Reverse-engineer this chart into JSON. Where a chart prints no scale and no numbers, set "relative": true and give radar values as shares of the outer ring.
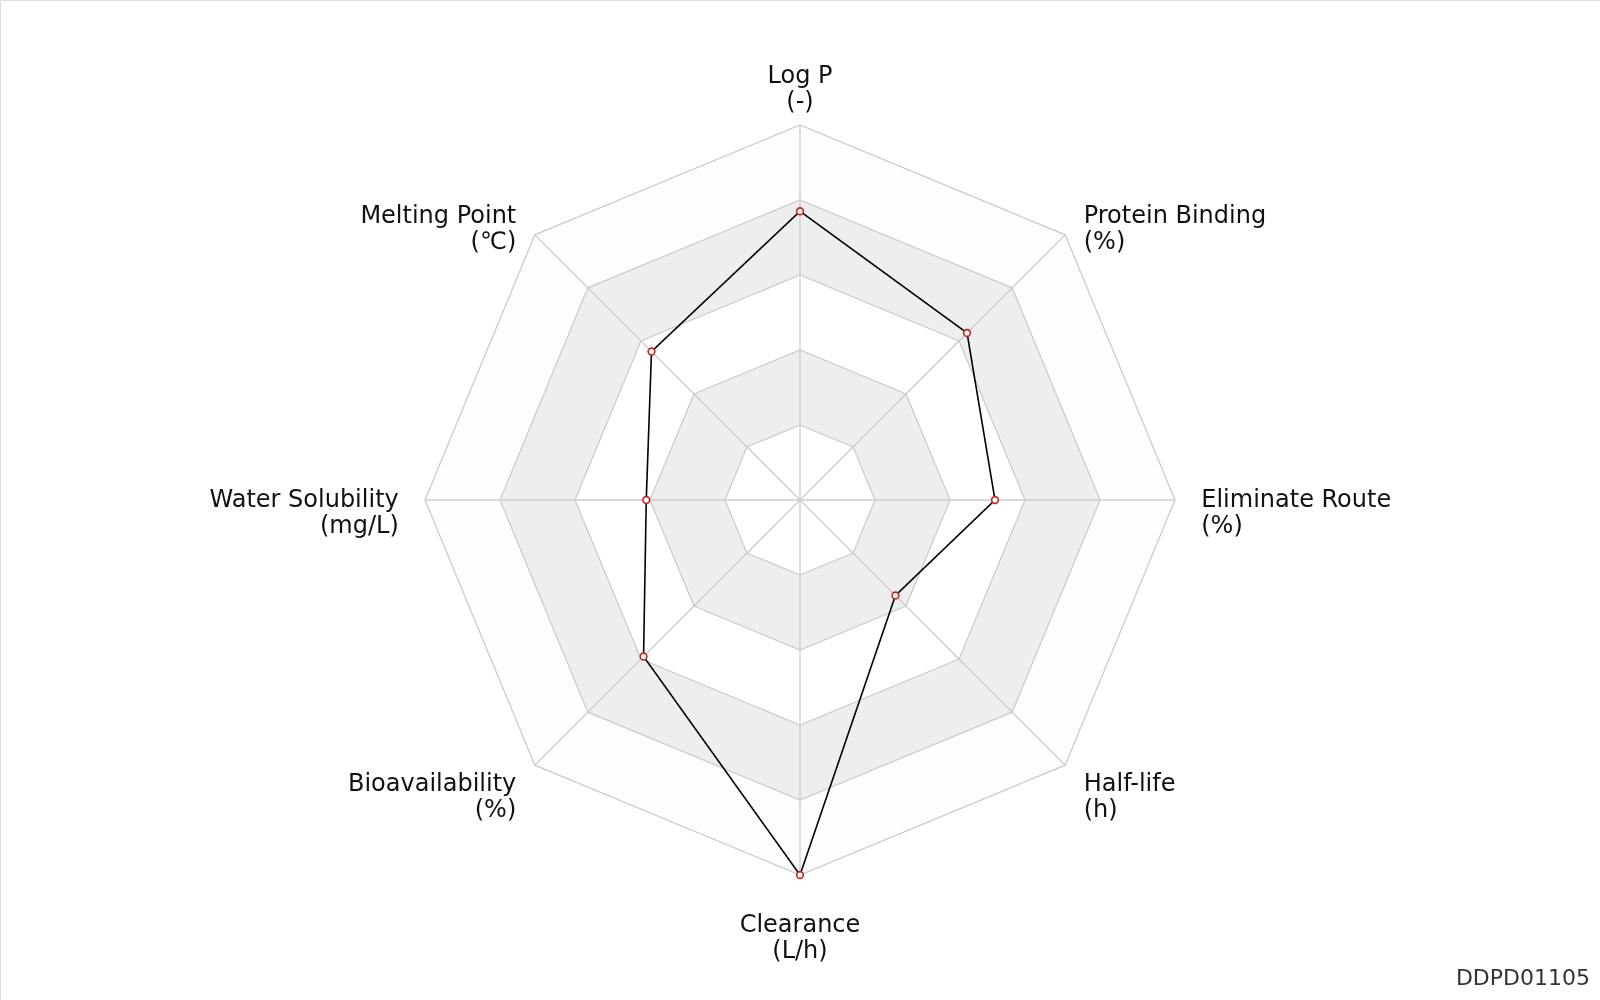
{
  "chart_data": {
    "type": "radar",
    "relative": true,
    "grid": true,
    "marker": "circle",
    "line_style": "solid",
    "categories": [
      "Log P\n(-)",
      "Protein Binding\n(%)",
      "Eliminate Route\n(%)",
      "Half-life\n(h)",
      "Clearance\n(L/h)",
      "Bioavailability\n(%)",
      "Water Solubility\n(mg/L)",
      "Melting Point\n(℃)"
    ],
    "series": [
      {
        "color": "#000000",
        "values": [
          0.77,
          0.63,
          0.52,
          0.36,
          1.0,
          0.59,
          0.41,
          0.56
        ]
      }
    ],
    "annotations": [
      "DDPD01105"
    ]
  }
}
